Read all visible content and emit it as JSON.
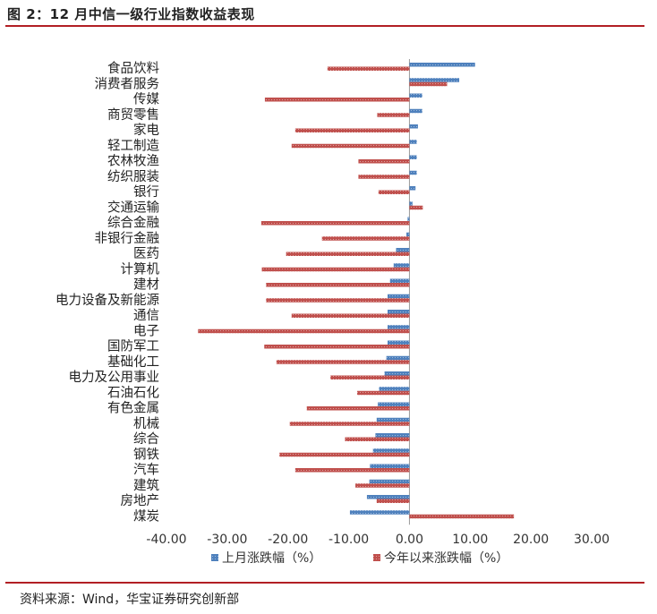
{
  "figure": {
    "title": "图 2：12 月中信一级行业指数收益表现",
    "source": "资料来源：Wind，华宝证券研究创新部"
  },
  "chart_data": {
    "type": "bar",
    "orientation": "horizontal",
    "title": "12 月中信一级行业指数收益表现",
    "xlabel": "",
    "ylabel": "",
    "xlim": [
      -40,
      30
    ],
    "x_ticks": [
      "-40.00",
      "-30.00",
      "-20.00",
      "-10.00",
      "0.00",
      "10.00",
      "20.00",
      "30.00"
    ],
    "x_tick_values": [
      -40,
      -30,
      -20,
      -10,
      0,
      10,
      20,
      30
    ],
    "categories": [
      "食品饮料",
      "消费者服务",
      "传媒",
      "商贸零售",
      "家电",
      "轻工制造",
      "农林牧渔",
      "纺织服装",
      "银行",
      "交通运输",
      "综合金融",
      "非银行金融",
      "医药",
      "计算机",
      "建材",
      "电力设备及新能源",
      "通信",
      "电子",
      "国防军工",
      "基础化工",
      "电力及公用事业",
      "石油石化",
      "有色金属",
      "机械",
      "综合",
      "钢铁",
      "汽车",
      "建筑",
      "房地产",
      "煤炭"
    ],
    "series": [
      {
        "name": "上月涨跌幅（%）",
        "color": "#4f81bd",
        "values": [
          10.8,
          8.2,
          2.1,
          2.1,
          1.4,
          1.2,
          1.2,
          1.2,
          1.0,
          0.5,
          -0.3,
          -0.5,
          -2.2,
          -2.6,
          -3.2,
          -3.6,
          -3.6,
          -3.6,
          -3.6,
          -3.8,
          -4.1,
          -5.0,
          -5.2,
          -5.4,
          -5.6,
          -6.0,
          -6.5,
          -6.6,
          -7.0,
          -9.8
        ]
      },
      {
        "name": "今年以来涨跌幅（%）",
        "color": "#c0504d",
        "values": [
          -13.5,
          6.2,
          -23.8,
          -5.3,
          -18.8,
          -19.4,
          -8.4,
          -8.4,
          -5.1,
          2.2,
          -24.4,
          -14.4,
          -20.3,
          -24.3,
          -23.6,
          -23.6,
          -19.4,
          -34.8,
          -23.9,
          -21.9,
          -13.0,
          -8.6,
          -16.9,
          -19.7,
          -10.6,
          -21.4,
          -18.8,
          -8.9,
          -5.4,
          17.2
        ]
      }
    ],
    "legend_position": "bottom"
  }
}
